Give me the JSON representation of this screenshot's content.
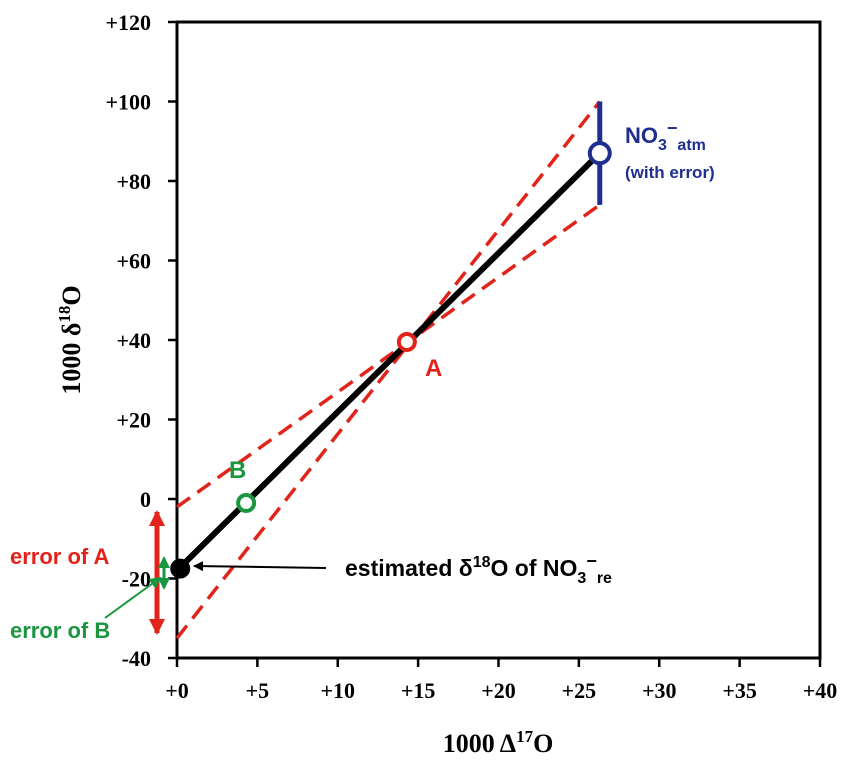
{
  "chart_data": {
    "type": "scatter",
    "xlabel": {
      "prefix": "1000 Δ",
      "sup": "17",
      "suffix": "O"
    },
    "ylabel": {
      "prefix": "1000 δ",
      "sup": "18",
      "suffix": "O"
    },
    "xlim": [
      0,
      40
    ],
    "ylim": [
      -40,
      120
    ],
    "xticks": [
      0,
      5,
      10,
      15,
      20,
      25,
      30,
      35,
      40
    ],
    "yticks": [
      -40,
      -20,
      0,
      20,
      40,
      60,
      80,
      100,
      120
    ],
    "xtick_labels": [
      "+0",
      "+5",
      "+10",
      "+15",
      "+20",
      "+25",
      "+30",
      "+35",
      "+40"
    ],
    "ytick_labels": [
      "-40",
      "-20",
      "0",
      "+20",
      "+40",
      "+60",
      "+80",
      "+100",
      "+120"
    ],
    "grid": false,
    "points": [
      {
        "id": "nitrate-atm",
        "x": 26.3,
        "y": 87,
        "color": "#1f2f8f",
        "style": "open"
      },
      {
        "id": "A",
        "x": 14.3,
        "y": 39.5,
        "color": "#e2231a",
        "style": "open"
      },
      {
        "id": "B",
        "x": 4.3,
        "y": -1,
        "color": "#1a9641",
        "style": "open"
      },
      {
        "id": "nitrate-re",
        "x": 0.2,
        "y": -17.5,
        "color": "#000000",
        "style": "filled"
      }
    ],
    "main_line": {
      "x": [
        0,
        26.3
      ],
      "y": [
        -18,
        87
      ],
      "color": "#000000"
    },
    "dashed_lines": [
      {
        "x": [
          0,
          26.3
        ],
        "y": [
          -35,
          100
        ],
        "color": "#e2231a"
      },
      {
        "x": [
          0,
          26.3
        ],
        "y": [
          -2,
          74
        ],
        "color": "#e2231a"
      }
    ],
    "error_bar": {
      "x": 26.3,
      "y_low": 74,
      "y_high": 100,
      "color": "#1f2f8f"
    },
    "colors": {
      "red": "#e2231a",
      "green": "#1a9641",
      "blue": "#1f2f8f",
      "black": "#000000"
    }
  },
  "annotations": {
    "atm_label": {
      "main": "NO",
      "sub": "3",
      "sup": "−",
      "sub2": "atm"
    },
    "atm_note": "(with error)",
    "a_label": "A",
    "b_label": "B",
    "error_a": "error of A",
    "error_b": "error of B",
    "estimated": {
      "prefix": "estimated δ",
      "sup": "18",
      "mid": "O of NO",
      "sub": "3",
      "sup2": "−",
      "sub2": "re"
    }
  }
}
